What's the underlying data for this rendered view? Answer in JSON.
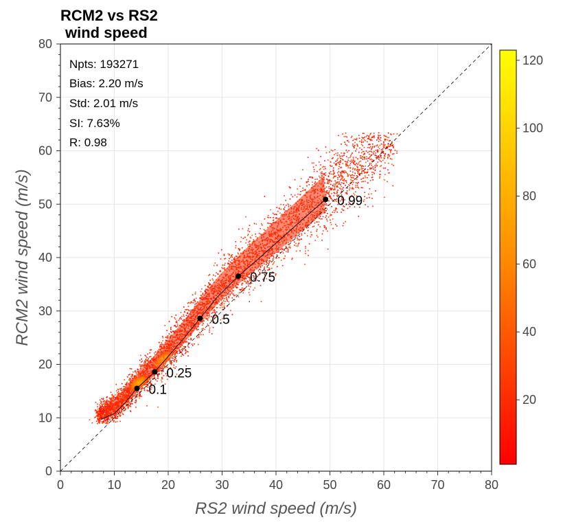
{
  "title": "RCM2 vs RS2",
  "subtitle": "wind speed",
  "stats": {
    "npts": "Npts: 193271",
    "bias": "Bias: 2.20 m/s",
    "std": "Std: 2.01 m/s",
    "si": "SI: 7.63%",
    "r": "R: 0.98"
  },
  "colors": {
    "low": "#ff0000",
    "mid": "#ff8c00",
    "high": "#ffff00",
    "points": "#000000",
    "grid": "#e6e6e6"
  },
  "chart_data": {
    "type": "scatter",
    "title": "RCM2 vs RS2 wind speed",
    "xlabel": "RS2 wind speed (m/s)",
    "ylabel": "RCM2 wind speed (m/s)",
    "xlim": [
      0,
      80
    ],
    "ylim": [
      0,
      80
    ],
    "xticks": [
      0,
      10,
      20,
      30,
      40,
      50,
      60,
      70,
      80
    ],
    "yticks": [
      0,
      10,
      20,
      30,
      40,
      50,
      60,
      70,
      80
    ],
    "grid": true,
    "identity_line": true,
    "density_cloud": {
      "description_free": true,
      "x_range": [
        7,
        62
      ],
      "y_range": [
        9,
        63
      ]
    },
    "quantile_points": [
      {
        "label": "0.1",
        "x": 14.2,
        "y": 15.5
      },
      {
        "label": "0.25",
        "x": 17.5,
        "y": 18.6
      },
      {
        "label": "0.5",
        "x": 25.9,
        "y": 28.6
      },
      {
        "label": "0.75",
        "x": 33.0,
        "y": 36.5
      },
      {
        "label": "0.99",
        "x": 49.2,
        "y": 50.9
      }
    ],
    "quantile_curve": {
      "x": [
        7.5,
        10,
        12,
        14.2,
        17.5,
        20,
        23,
        25.9,
        29,
        33.0,
        37,
        41,
        45,
        49.2
      ],
      "y": [
        9.7,
        10.8,
        12.8,
        15.5,
        18.6,
        21.5,
        25,
        28.6,
        32.5,
        36.5,
        40,
        43.6,
        47.2,
        50.9
      ]
    },
    "colorbar": {
      "range": [
        1,
        123
      ],
      "ticks": [
        20,
        40,
        60,
        80,
        100,
        120
      ]
    }
  }
}
